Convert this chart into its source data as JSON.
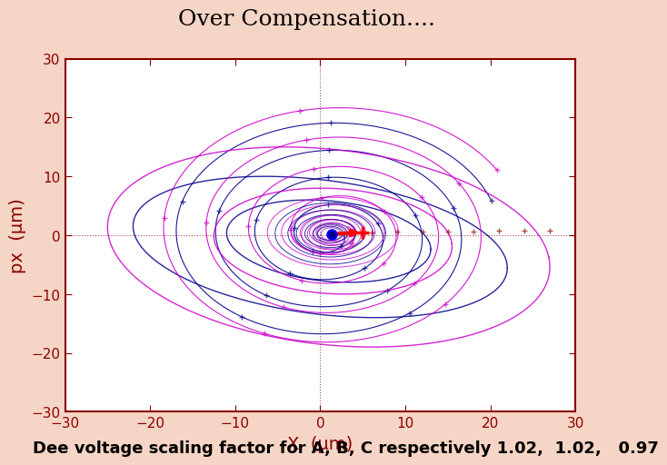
{
  "title": "Over Compensation....",
  "xlabel": "X  (μm)",
  "ylabel": "px  (μm)",
  "xlim": [
    -30,
    30
  ],
  "ylim": [
    -30,
    30
  ],
  "xticks": [
    -30,
    -20,
    -10,
    0,
    10,
    20,
    30
  ],
  "yticks": [
    -30,
    -20,
    -10,
    0,
    10,
    20,
    30
  ],
  "background_color": "#ffffff",
  "axis_color": "#8B0000",
  "caption": "Dee voltage scaling factor for A, B, C respectively 1.02,  1.02,   0.97",
  "caption_fontsize": 13,
  "title_fontsize": 18,
  "label_fontsize": 14,
  "tick_fontsize": 11,
  "outer_bg": "#f5d5c5"
}
